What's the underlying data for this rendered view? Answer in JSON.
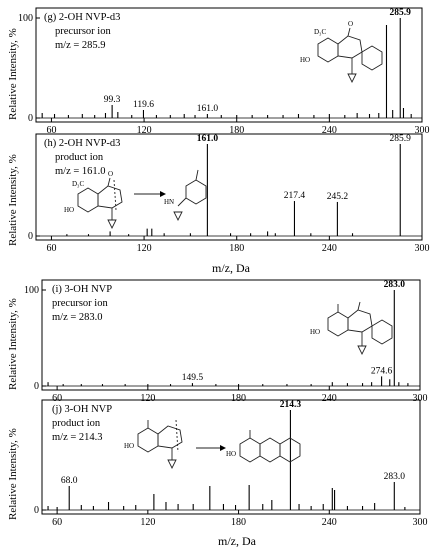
{
  "chart_data": [
    {
      "type": "bar",
      "label": "(g) 2-OH NVP-d3",
      "ion_type": "precursor ion",
      "mz_label": "m/z = 285.9",
      "ylabel": "Relative Intensity, %",
      "xlabel": "",
      "xlim": [
        50,
        300
      ],
      "ylim": [
        0,
        100
      ],
      "xticks": [
        "60",
        "120",
        "180",
        "240",
        "300"
      ],
      "yticks": [
        "0",
        "100"
      ],
      "peak_labels": [
        {
          "text": "99.3",
          "x": 99.3,
          "y": 13,
          "bold": false
        },
        {
          "text": "119.6",
          "x": 119.6,
          "y": 8,
          "bold": false
        },
        {
          "text": "161.0",
          "x": 161.0,
          "y": 4,
          "bold": false
        },
        {
          "text": "285.9",
          "x": 285.9,
          "y": 100,
          "bold": true
        }
      ],
      "peaks": [
        {
          "x": 54,
          "y": 5
        },
        {
          "x": 62,
          "y": 4
        },
        {
          "x": 71,
          "y": 3
        },
        {
          "x": 80,
          "y": 4
        },
        {
          "x": 88,
          "y": 3
        },
        {
          "x": 95,
          "y": 5
        },
        {
          "x": 99.3,
          "y": 13
        },
        {
          "x": 103,
          "y": 6
        },
        {
          "x": 112,
          "y": 3
        },
        {
          "x": 119.6,
          "y": 8
        },
        {
          "x": 128,
          "y": 3
        },
        {
          "x": 137,
          "y": 3
        },
        {
          "x": 146,
          "y": 4
        },
        {
          "x": 153,
          "y": 3
        },
        {
          "x": 161.0,
          "y": 4
        },
        {
          "x": 170,
          "y": 3
        },
        {
          "x": 180,
          "y": 3
        },
        {
          "x": 190,
          "y": 3
        },
        {
          "x": 200,
          "y": 3
        },
        {
          "x": 210,
          "y": 3
        },
        {
          "x": 220,
          "y": 4
        },
        {
          "x": 230,
          "y": 3
        },
        {
          "x": 240,
          "y": 4
        },
        {
          "x": 250,
          "y": 3
        },
        {
          "x": 258,
          "y": 5
        },
        {
          "x": 266,
          "y": 4
        },
        {
          "x": 272,
          "y": 5
        },
        {
          "x": 277,
          "y": 93
        },
        {
          "x": 281,
          "y": 8
        },
        {
          "x": 285.9,
          "y": 100
        },
        {
          "x": 288,
          "y": 10
        },
        {
          "x": 293,
          "y": 4
        }
      ]
    },
    {
      "type": "bar",
      "label": "(h) 2-OH NVP-d3",
      "ion_type": "product ion",
      "mz_label": "m/z = 161.0",
      "ylabel": "Relative Intensity, %",
      "xlabel": "m/z, Da",
      "xlim": [
        50,
        300
      ],
      "ylim": [
        0,
        100
      ],
      "xticks": [
        "60",
        "120",
        "180",
        "240",
        "300"
      ],
      "yticks": [
        "0"
      ],
      "peak_labels": [
        {
          "text": "161.0",
          "x": 161.0,
          "y": 100,
          "bold": true
        },
        {
          "text": "285.9",
          "x": 285.9,
          "y": 100,
          "bold": false
        },
        {
          "text": "217.4",
          "x": 217.4,
          "y": 38,
          "bold": false
        },
        {
          "text": "245.2",
          "x": 245.2,
          "y": 37,
          "bold": false
        }
      ],
      "peaks": [
        {
          "x": 70,
          "y": 2
        },
        {
          "x": 84,
          "y": 2
        },
        {
          "x": 98,
          "y": 5
        },
        {
          "x": 110,
          "y": 2
        },
        {
          "x": 122,
          "y": 8
        },
        {
          "x": 125,
          "y": 8
        },
        {
          "x": 133,
          "y": 3
        },
        {
          "x": 150,
          "y": 3
        },
        {
          "x": 161.0,
          "y": 100
        },
        {
          "x": 176,
          "y": 3
        },
        {
          "x": 189,
          "y": 3
        },
        {
          "x": 200,
          "y": 5
        },
        {
          "x": 205,
          "y": 3
        },
        {
          "x": 217.4,
          "y": 38
        },
        {
          "x": 228,
          "y": 3
        },
        {
          "x": 245.2,
          "y": 37
        },
        {
          "x": 255,
          "y": 3
        },
        {
          "x": 285.9,
          "y": 100
        }
      ]
    },
    {
      "type": "bar",
      "label": "(i) 3-OH NVP",
      "ion_type": "precursor ion",
      "mz_label": "m/z = 283.0",
      "ylabel": "Relative Intensity, %",
      "xlabel": "",
      "xlim": [
        50,
        300
      ],
      "ylim": [
        0,
        100
      ],
      "xticks": [
        "60",
        "120",
        "180",
        "240",
        "300"
      ],
      "yticks": [
        "0",
        "100"
      ],
      "peak_labels": [
        {
          "text": "283.0",
          "x": 283.0,
          "y": 100,
          "bold": true
        },
        {
          "text": "149.5",
          "x": 149.5,
          "y": 3,
          "bold": false
        },
        {
          "text": "274.6",
          "x": 274.6,
          "y": 10,
          "bold": false
        }
      ],
      "peaks": [
        {
          "x": 54,
          "y": 4
        },
        {
          "x": 64,
          "y": 2
        },
        {
          "x": 76,
          "y": 2
        },
        {
          "x": 90,
          "y": 2
        },
        {
          "x": 105,
          "y": 2
        },
        {
          "x": 120,
          "y": 2
        },
        {
          "x": 135,
          "y": 2
        },
        {
          "x": 149.5,
          "y": 3
        },
        {
          "x": 165,
          "y": 2
        },
        {
          "x": 180,
          "y": 2
        },
        {
          "x": 196,
          "y": 2
        },
        {
          "x": 212,
          "y": 2
        },
        {
          "x": 228,
          "y": 2
        },
        {
          "x": 242,
          "y": 4
        },
        {
          "x": 252,
          "y": 3
        },
        {
          "x": 262,
          "y": 3
        },
        {
          "x": 268,
          "y": 4
        },
        {
          "x": 274.6,
          "y": 10
        },
        {
          "x": 280,
          "y": 7
        },
        {
          "x": 283.0,
          "y": 100
        },
        {
          "x": 286,
          "y": 4
        },
        {
          "x": 292,
          "y": 3
        }
      ]
    },
    {
      "type": "bar",
      "label": "(j) 3-OH NVP",
      "ion_type": "product ion",
      "mz_label": "m/z = 214.3",
      "ylabel": "Relative Intensity, %",
      "xlabel": "m/z, Da",
      "xlim": [
        50,
        300
      ],
      "ylim": [
        0,
        100
      ],
      "xticks": [
        "60",
        "120",
        "180",
        "240",
        "300"
      ],
      "yticks": [
        "0"
      ],
      "peak_labels": [
        {
          "text": "214.3",
          "x": 214.3,
          "y": 100,
          "bold": true
        },
        {
          "text": "68.0",
          "x": 68.0,
          "y": 24,
          "bold": false
        },
        {
          "text": "283.0",
          "x": 283.0,
          "y": 28,
          "bold": false
        }
      ],
      "peaks": [
        {
          "x": 54,
          "y": 4
        },
        {
          "x": 60,
          "y": 3
        },
        {
          "x": 68.0,
          "y": 24
        },
        {
          "x": 76,
          "y": 5
        },
        {
          "x": 84,
          "y": 4
        },
        {
          "x": 94,
          "y": 8
        },
        {
          "x": 104,
          "y": 4
        },
        {
          "x": 112,
          "y": 5
        },
        {
          "x": 124,
          "y": 16
        },
        {
          "x": 132,
          "y": 8
        },
        {
          "x": 140,
          "y": 6
        },
        {
          "x": 150,
          "y": 6
        },
        {
          "x": 161,
          "y": 24
        },
        {
          "x": 170,
          "y": 6
        },
        {
          "x": 178,
          "y": 5
        },
        {
          "x": 187,
          "y": 25
        },
        {
          "x": 196,
          "y": 6
        },
        {
          "x": 202,
          "y": 10
        },
        {
          "x": 214.3,
          "y": 100
        },
        {
          "x": 220,
          "y": 6
        },
        {
          "x": 228,
          "y": 4
        },
        {
          "x": 236,
          "y": 6
        },
        {
          "x": 242,
          "y": 22
        },
        {
          "x": 243.5,
          "y": 20
        },
        {
          "x": 252,
          "y": 4
        },
        {
          "x": 262,
          "y": 4
        },
        {
          "x": 270,
          "y": 7
        },
        {
          "x": 283.0,
          "y": 28
        },
        {
          "x": 290,
          "y": 3
        }
      ]
    }
  ],
  "structure_labels": {
    "cd3": "D₃C",
    "ho": "HO",
    "o": "O",
    "n": "N",
    "nh": "HN",
    "h": "H"
  }
}
